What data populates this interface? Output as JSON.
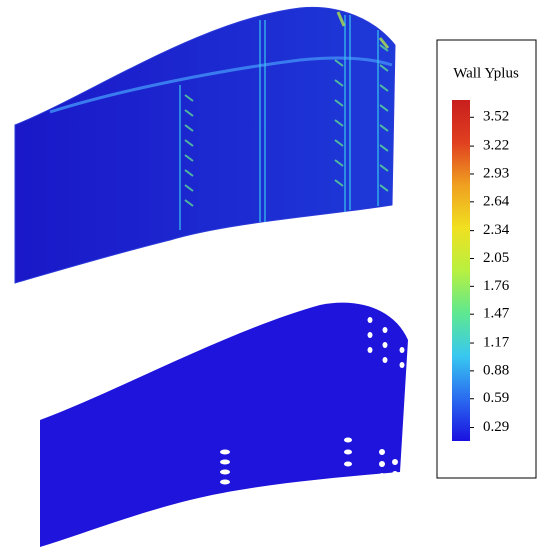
{
  "chart_data": {
    "type": "colorbar",
    "title": "Wall Yplus",
    "ylim": [
      0.15,
      3.7
    ],
    "yticks": [
      3.52,
      3.22,
      2.93,
      2.64,
      2.34,
      2.05,
      1.76,
      1.47,
      1.17,
      0.88,
      0.59,
      0.29
    ],
    "colors": [
      "#1a10e0",
      "#2a6cf0",
      "#38c8f0",
      "#5ee890",
      "#b8f040",
      "#f0e020",
      "#f0a020",
      "#e04020",
      "#c81e1e"
    ]
  }
}
